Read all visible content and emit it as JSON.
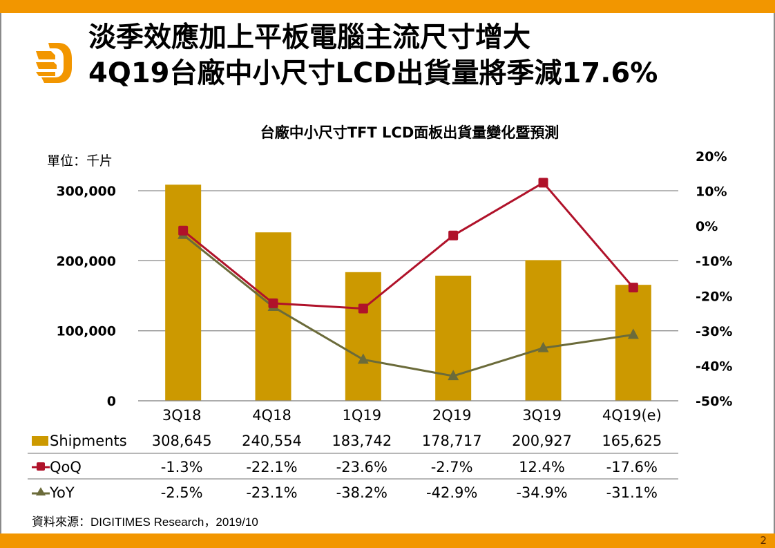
{
  "header": {
    "title_line1": "淡季效應加上平板電腦主流尺寸增大",
    "title_line2": "4Q19台廠中小尺寸LCD出貨量將季減17.6%",
    "logo_icon": "digitimes-d-logo-icon"
  },
  "footer": {
    "source": "資料來源：DIGITIMES Research，2019/10",
    "page_number": "2"
  },
  "colors": {
    "brand_orange": "#f29600",
    "bar": "#cc9900",
    "qoq": "#b0122a",
    "yoy": "#6b6b3a"
  },
  "chart_data": {
    "type": "bar",
    "title": "台廠中小尺寸TFT LCD面板出貨量變化暨預測",
    "unit_label": "單位：千片",
    "categories": [
      "3Q18",
      "4Q18",
      "1Q19",
      "2Q19",
      "3Q19",
      "4Q19(e)"
    ],
    "series": [
      {
        "name": "Shipments",
        "type": "bar",
        "axis": "left",
        "values": [
          308645,
          240554,
          183742,
          178717,
          200927,
          165625
        ],
        "labels": [
          "308,645",
          "240,554",
          "183,742",
          "178,717",
          "200,927",
          "165,625"
        ]
      },
      {
        "name": "QoQ",
        "type": "line",
        "marker": "square",
        "axis": "right",
        "values": [
          -1.3,
          -22.1,
          -23.6,
          -2.7,
          12.4,
          -17.6
        ],
        "labels": [
          "-1.3%",
          "-22.1%",
          "-23.6%",
          "-2.7%",
          "12.4%",
          "-17.6%"
        ]
      },
      {
        "name": "YoY",
        "type": "line",
        "marker": "triangle",
        "axis": "right",
        "values": [
          -2.5,
          -23.1,
          -38.2,
          -42.9,
          -34.9,
          -31.1
        ],
        "labels": [
          "-2.5%",
          "-23.1%",
          "-38.2%",
          "-42.9%",
          "-34.9%",
          "-31.1%"
        ]
      }
    ],
    "left_axis": {
      "ylim": [
        0,
        300000
      ],
      "ticks": [
        0,
        100000,
        200000,
        300000
      ],
      "tick_labels": [
        "0",
        "100,000",
        "200,000",
        "300,000"
      ]
    },
    "right_axis": {
      "ylim": [
        -50,
        20
      ],
      "ticks": [
        20,
        10,
        0,
        -10,
        -20,
        -30,
        -40,
        -50
      ],
      "tick_labels": [
        "20%",
        "10%",
        "0%",
        "-10%",
        "-20%",
        "-30%",
        "-40%",
        "-50%"
      ]
    },
    "grid": true,
    "legend": "data-table-below"
  }
}
